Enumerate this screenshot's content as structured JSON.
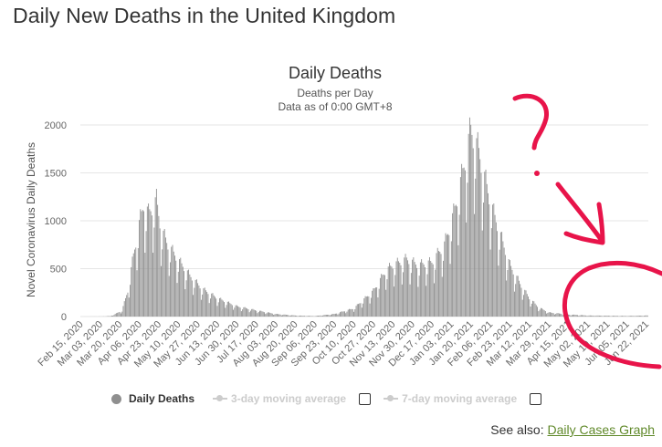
{
  "page": {
    "title": "Daily New Deaths in the United Kingdom"
  },
  "legend": {
    "daily_deaths": "Daily Deaths",
    "ma3": "3-day moving average",
    "ma7": "7-day moving average"
  },
  "see_also": {
    "label": "See also:",
    "link_text": "Daily Cases Graph"
  },
  "colors": {
    "bars": "#8f8f8f",
    "grid": "#e6e6e6",
    "annotation": "#e8144a",
    "link": "#60892a"
  },
  "chart_data": {
    "type": "bar",
    "title": "Daily Deaths",
    "subtitle": [
      "Deaths per Day",
      "Data as of 0:00 GMT+8"
    ],
    "ylabel": "Novel Coronavirus Daily Deaths",
    "xlabel": "",
    "ylim": [
      0,
      2000
    ],
    "yticks": [
      0,
      500,
      1000,
      1500,
      2000
    ],
    "grid": true,
    "legend_position": "bottom",
    "x_start": "2020-02-15",
    "x_end": "2021-06-23",
    "xtick_labels": [
      "Feb 15, 2020",
      "Mar 03, 2020",
      "Mar 20, 2020",
      "Apr 06, 2020",
      "Apr 23, 2020",
      "May 10, 2020",
      "May 27, 2020",
      "Jun 13, 2020",
      "Jun 30, 2020",
      "Jul 17, 2020",
      "Aug 03, 2020",
      "Aug 20, 2020",
      "Sep 06, 2020",
      "Sep 23, 2020",
      "Oct 10, 2020",
      "Oct 27, 2020",
      "Nov 13, 2020",
      "Nov 30, 2020",
      "Dec 17, 2020",
      "Jan 03, 2021",
      "Jan 20, 2021",
      "Feb 06, 2021",
      "Feb 23, 2021",
      "Mar 12, 2021",
      "Mar 29, 2021",
      "Apr 15, 2021",
      "May 02, 2021",
      "May 19, 2021",
      "Jun 05, 2021",
      "Jun 22, 2021"
    ],
    "anchors": [
      [
        "2020-02-15",
        0
      ],
      [
        "2020-03-05",
        1
      ],
      [
        "2020-03-12",
        5
      ],
      [
        "2020-03-17",
        30
      ],
      [
        "2020-03-22",
        60
      ],
      [
        "2020-03-27",
        250
      ],
      [
        "2020-04-01",
        600
      ],
      [
        "2020-04-06",
        900
      ],
      [
        "2020-04-10",
        1100
      ],
      [
        "2020-04-14",
        1000
      ],
      [
        "2020-04-21",
        1130
      ],
      [
        "2020-04-25",
        850
      ],
      [
        "2020-05-01",
        700
      ],
      [
        "2020-05-10",
        550
      ],
      [
        "2020-05-20",
        400
      ],
      [
        "2020-05-31",
        270
      ],
      [
        "2020-06-13",
        180
      ],
      [
        "2020-06-30",
        100
      ],
      [
        "2020-07-17",
        60
      ],
      [
        "2020-08-03",
        25
      ],
      [
        "2020-08-20",
        10
      ],
      [
        "2020-09-06",
        5
      ],
      [
        "2020-09-23",
        25
      ],
      [
        "2020-10-10",
        80
      ],
      [
        "2020-10-27",
        250
      ],
      [
        "2020-11-07",
        450
      ],
      [
        "2020-11-13",
        500
      ],
      [
        "2020-11-25",
        560
      ],
      [
        "2020-12-05",
        500
      ],
      [
        "2020-12-17",
        530
      ],
      [
        "2020-12-28",
        700
      ],
      [
        "2021-01-05",
        1000
      ],
      [
        "2021-01-12",
        1350
      ],
      [
        "2021-01-20",
        1820
      ],
      [
        "2021-01-27",
        1600
      ],
      [
        "2021-02-02",
        1300
      ],
      [
        "2021-02-09",
        1000
      ],
      [
        "2021-02-16",
        750
      ],
      [
        "2021-02-23",
        500
      ],
      [
        "2021-03-05",
        300
      ],
      [
        "2021-03-12",
        180
      ],
      [
        "2021-03-20",
        90
      ],
      [
        "2021-03-29",
        40
      ],
      [
        "2021-04-15",
        20
      ],
      [
        "2021-05-02",
        10
      ],
      [
        "2021-05-19",
        8
      ],
      [
        "2021-06-05",
        6
      ],
      [
        "2021-06-22",
        10
      ]
    ]
  }
}
